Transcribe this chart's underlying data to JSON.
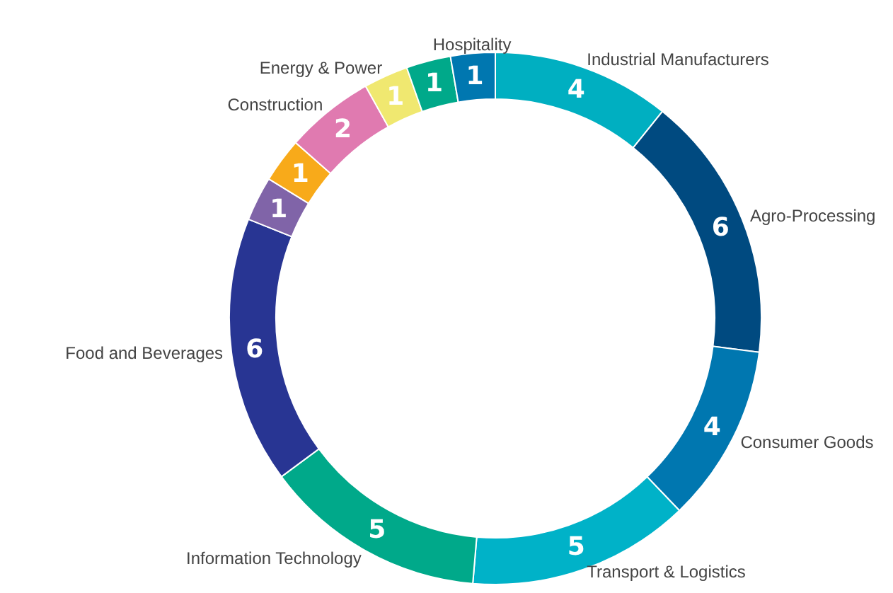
{
  "chart_data": {
    "type": "donut",
    "categories": [
      "Industrial Manufacturers",
      "Agro-Processing",
      "Consumer Goods",
      "Transport & Logistics",
      "Information Technology",
      "Food and Beverages",
      null,
      null,
      "Construction",
      "Energy & Power",
      null,
      "Hospitality"
    ],
    "values": [
      4,
      6,
      4,
      5,
      5,
      6,
      1,
      1,
      2,
      1,
      1,
      1
    ],
    "colors": [
      "#00afc1",
      "#004a80",
      "#0077b0",
      "#00b2c8",
      "#00a98a",
      "#283593",
      "#8064a8",
      "#f8aa1a",
      "#e07ab0",
      "#f0e870",
      "#00a98a",
      "#0077b0"
    ],
    "data_labels": true
  }
}
